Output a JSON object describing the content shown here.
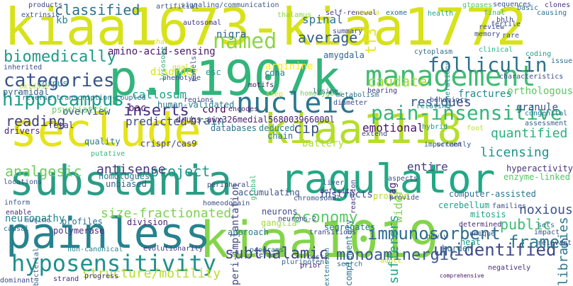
{
  "words": [
    {
      "text": "kiaa1673-kiaa1772",
      "color": "#d7e219"
    },
    {
      "text": "p.r1907k",
      "color": "#31b57b"
    },
    {
      "text": "seclude",
      "color": "#e4e419"
    },
    {
      "text": "substania",
      "color": "#2a9d85"
    },
    {
      "text": "ragulator",
      "color": "#22a884"
    },
    {
      "text": "kiaa1019",
      "color": "#84d44b"
    },
    {
      "text": "painless",
      "color": "#26828e"
    },
    {
      "text": "kiaa1118",
      "color": "#b5de2b"
    },
    {
      "text": "nucleic",
      "color": "#2a768e"
    },
    {
      "text": "management",
      "color": "#3fbc73"
    },
    {
      "text": "hyposensitivity",
      "color": "#21908d"
    },
    {
      "text": "pain-insensitive",
      "color": "#35b779"
    },
    {
      "text": "folliculin",
      "color": "#2c728e"
    },
    {
      "text": "categories",
      "color": "#3b528b"
    },
    {
      "text": "hippocampus",
      "color": "#1f9e89"
    },
    {
      "text": "named",
      "color": "#8ed645"
    },
    {
      "text": "immunosorbent",
      "color": "#2e6e8e"
    },
    {
      "text": "economy",
      "color": "#5ec962"
    },
    {
      "text": "unidentified",
      "color": "#3e4989"
    },
    {
      "text": "frames",
      "color": "#27808e"
    },
    {
      "text": "subthalamic",
      "color": "#414487"
    },
    {
      "text": "monoaminergic",
      "color": "#38598c"
    },
    {
      "text": "biomedically",
      "color": "#1e9b8a"
    },
    {
      "text": "inserts",
      "color": "#46327e"
    },
    {
      "text": "classified",
      "color": "#2d708e"
    },
    {
      "text": "average",
      "color": "#365c8d"
    },
    {
      "text": "caudate",
      "color": "#a5db36"
    },
    {
      "text": "size-fractionated",
      "color": "#7ad151"
    },
    {
      "text": "structure/motility",
      "color": "#b8de29"
    },
    {
      "text": "libraries",
      "color": "#2b758e"
    },
    {
      "text": "project",
      "color": "#1f978b"
    },
    {
      "text": "analgesic",
      "color": "#6ccd5a"
    },
    {
      "text": "antisense",
      "color": "#443a83"
    },
    {
      "text": "reading",
      "color": "#433e85"
    },
    {
      "text": "public",
      "color": "#3dbc74"
    },
    {
      "text": "noxious",
      "color": "#3b528b"
    },
    {
      "text": "licensing",
      "color": "#21918c"
    },
    {
      "text": "quantified",
      "color": "#2ab07f"
    },
    {
      "text": "sufferers",
      "color": "#1fa187"
    },
    {
      "text": "residues",
      "color": "#39568c"
    },
    {
      "text": "emotional",
      "color": "#471063"
    },
    {
      "text": "cip",
      "color": "#3b528b"
    },
    {
      "text": "brain",
      "color": "#2a788e"
    },
    {
      "text": "cord",
      "color": "#440154"
    },
    {
      "text": "predicted",
      "color": "#3e4a89"
    },
    {
      "text": "overview",
      "color": "#3a538b"
    },
    {
      "text": "callosum",
      "color": "#20a386"
    },
    {
      "text": "neuropathy",
      "color": "#23898e"
    },
    {
      "text": "spinal",
      "color": "#2c718e"
    },
    {
      "text": "tf3",
      "color": "#e5e419"
    },
    {
      "text": "kb",
      "color": "#23888e"
    },
    {
      "text": "amino-acid-sensing",
      "color": "#481769"
    },
    {
      "text": "battery",
      "color": "#addc30"
    },
    {
      "text": "entire",
      "color": "#443983"
    },
    {
      "text": "instructs",
      "color": "#3b518b"
    },
    {
      "text": "fractures",
      "color": "#24868e"
    },
    {
      "text": "granule",
      "color": "#3c4f8a"
    },
    {
      "text": "orthologous",
      "color": "#5cc863"
    },
    {
      "text": "immunosorbent-x",
      "color": "#2e6e8e"
    },
    {
      "text": "human-validated",
      "color": "#287d8e"
    },
    {
      "text": "bac",
      "color": "#471365"
    },
    {
      "text": "deduced",
      "color": "#26828e"
    },
    {
      "text": "chain",
      "color": "#2c728e"
    },
    {
      "text": "drugs.awx326medial568003966000l",
      "color": "#482173"
    },
    {
      "text": "wider",
      "color": "#7fd34e"
    },
    {
      "text": "rag",
      "color": "#482475"
    },
    {
      "text": "hyperactivity",
      "color": "#46337f"
    },
    {
      "text": "computer-assisted",
      "color": "#2d708e"
    },
    {
      "text": "enzyme-linked",
      "color": "#54c568"
    },
    {
      "text": "arginine",
      "color": "#fde725"
    },
    {
      "text": "nigra",
      "color": "#31668e"
    },
    {
      "text": "amygdala",
      "color": "#31668e"
    },
    {
      "text": "cdna",
      "color": "#287c8e"
    },
    {
      "text": "esc",
      "color": "#1f9e89"
    },
    {
      "text": "corpus",
      "color": "#277f8e"
    },
    {
      "text": "disorder",
      "color": "#d2e21b"
    },
    {
      "text": "psychiatric",
      "color": "#65cb5e"
    },
    {
      "text": "pyramidal",
      "color": "#33638d"
    },
    {
      "text": "fetal",
      "color": "#443983"
    },
    {
      "text": "drivers",
      "color": "#482677"
    },
    {
      "text": "quality",
      "color": "#2a788e"
    },
    {
      "text": "crispr/cas9",
      "color": "#414487"
    },
    {
      "text": "databases",
      "color": "#2d708e"
    },
    {
      "text": "homologues",
      "color": "#29798e"
    },
    {
      "text": "unbiased",
      "color": "#355f8d"
    },
    {
      "text": "accumulating",
      "color": "#3b528b"
    },
    {
      "text": "neurons",
      "color": "#3e4989"
    },
    {
      "text": "cerebellum",
      "color": "#1fa088"
    },
    {
      "text": "polymerase",
      "color": "#472d7b"
    },
    {
      "text": "profiles",
      "color": "#2c718e"
    },
    {
      "text": "division",
      "color": "#481f70"
    },
    {
      "text": "approach",
      "color": "#287d8e"
    },
    {
      "text": "segregates",
      "color": "#2a778e"
    },
    {
      "text": "mitosis",
      "color": "#1fa187"
    },
    {
      "text": "burden",
      "color": "#2c718e"
    },
    {
      "text": "heat",
      "color": "#1f9a8a"
    },
    {
      "text": "non-canonical",
      "color": "#25848e"
    },
    {
      "text": "comprehensive",
      "color": "#471164"
    },
    {
      "text": "strand",
      "color": "#472c7a"
    },
    {
      "text": "murine",
      "color": "#34618d"
    },
    {
      "text": "causal",
      "color": "#2e6f8e"
    },
    {
      "text": "enable",
      "color": "#482979"
    },
    {
      "text": "inform",
      "color": "#39568c"
    },
    {
      "text": "ganglia",
      "color": "#a2da37"
    },
    {
      "text": "liver",
      "color": "#3f4889"
    },
    {
      "text": "deficits",
      "color": "#46337f"
    },
    {
      "text": "neurons-2",
      "color": "#3e4989"
    },
    {
      "text": "proband",
      "color": "#b4de2c"
    },
    {
      "text": "screen",
      "color": "#3e4a89"
    },
    {
      "text": "families",
      "color": "#3b528b"
    },
    {
      "text": "sets",
      "color": "#2a768e"
    },
    {
      "text": "impact",
      "color": "#3d4e8a"
    },
    {
      "text": "products",
      "color": "#404588"
    },
    {
      "text": "artificial",
      "color": "#3a548c"
    },
    {
      "text": "signaling/communication",
      "color": "#38588c"
    },
    {
      "text": "sequences",
      "color": "#39558c"
    },
    {
      "text": "gtpases",
      "color": "#56c667"
    },
    {
      "text": "clones",
      "color": "#46327e"
    },
    {
      "text": "basic",
      "color": "#2e6d8e"
    },
    {
      "text": "extrinsic",
      "color": "#3b518b"
    },
    {
      "text": "thalamus",
      "color": "#8bd646"
    },
    {
      "text": "self-renewal",
      "color": "#453781"
    },
    {
      "text": "exome",
      "color": "#2d718e"
    },
    {
      "text": "health",
      "color": "#20a486"
    },
    {
      "text": "final",
      "color": "#31b57b"
    },
    {
      "text": "mapping",
      "color": "#dde318"
    },
    {
      "text": "bhlh",
      "color": "#3f4788"
    },
    {
      "text": "autosomal",
      "color": "#463480"
    },
    {
      "text": "lysosome",
      "color": "#2db27d"
    },
    {
      "text": "panels",
      "color": "#39568c"
    },
    {
      "text": "generations",
      "color": "#25858e"
    },
    {
      "text": "rare",
      "color": "#3c4f8a"
    },
    {
      "text": "clinical",
      "color": "#2ab07f"
    },
    {
      "text": "coding",
      "color": "#1f9e89"
    },
    {
      "text": "issue",
      "color": "#2e6d8e"
    },
    {
      "text": "cytoplasm",
      "color": "#2f6b8e"
    },
    {
      "text": "inherited",
      "color": "#3e4a89"
    },
    {
      "text": "goals",
      "color": "#bade28"
    },
    {
      "text": "phenotype",
      "color": "#3c508b"
    },
    {
      "text": "motifs",
      "color": "#481b6d"
    },
    {
      "text": "regions",
      "color": "#3f4788"
    },
    {
      "text": "encodes",
      "color": "#482374"
    },
    {
      "text": "homozygous",
      "color": "#6ece58"
    },
    {
      "text": "metabolism",
      "color": "#2c728e"
    },
    {
      "text": "bearing",
      "color": "#453882"
    },
    {
      "text": "diameter",
      "color": "#3e4c8a"
    },
    {
      "text": "relating",
      "color": "#1f998a"
    },
    {
      "text": "behaviors",
      "color": "#3b528b"
    },
    {
      "text": "characteristics",
      "color": "#3d4e8a"
    },
    {
      "text": "foot",
      "color": "#c0df25"
    },
    {
      "text": "hybrid",
      "color": "#1f958b"
    },
    {
      "text": "assessment",
      "color": "#34608d"
    },
    {
      "text": "congenital",
      "color": "#2c728e"
    },
    {
      "text": "reverse-transcription-coupled",
      "color": "#2f6c8e"
    },
    {
      "text": "step",
      "color": "#dae319"
    },
    {
      "text": "lysine",
      "color": "#2f6c8e"
    },
    {
      "text": "peripheral",
      "color": "#3e4c8a"
    },
    {
      "text": "global",
      "color": "#3aba76"
    },
    {
      "text": "chromosomal",
      "color": "#3a538b"
    },
    {
      "text": "peri-implantation",
      "color": "#3f4889"
    },
    {
      "text": "homeodomain",
      "color": "#3c4f8a"
    },
    {
      "text": "reaction",
      "color": "#453581"
    },
    {
      "text": "provide",
      "color": "#3b528b"
    },
    {
      "text": "transitions",
      "color": "#3e4989"
    },
    {
      "text": "evolutionarily",
      "color": "#443983"
    },
    {
      "text": "programs",
      "color": "#2c718e"
    },
    {
      "text": "terms",
      "color": "#3e4a89"
    },
    {
      "text": "pluripotent",
      "color": "#33638d"
    },
    {
      "text": "complementary",
      "color": "#2a778e"
    },
    {
      "text": "newly",
      "color": "#3c4f8a"
    },
    {
      "text": "determined",
      "color": "#482878"
    },
    {
      "text": "unique",
      "color": "#38588c"
    },
    {
      "text": "negatively",
      "color": "#472f7d"
    },
    {
      "text": "relevant",
      "color": "#3e4989"
    },
    {
      "text": "aspects",
      "color": "#3c4f8a"
    },
    {
      "text": "importantly",
      "color": "#38588c"
    },
    {
      "text": "dominant",
      "color": "#3e4989"
    },
    {
      "text": "progress",
      "color": "#472c7a"
    },
    {
      "text": "tests",
      "color": "#3b528b"
    },
    {
      "text": "adult",
      "color": "#c5e021"
    },
    {
      "text": "prior",
      "color": "#482374"
    },
    {
      "text": "search",
      "color": "#2b758e"
    },
    {
      "text": "putative",
      "color": "#35b779"
    },
    {
      "text": "bacterial",
      "color": "#31668e"
    },
    {
      "text": "locations",
      "color": "#3b528b"
    },
    {
      "text": "extend",
      "color": "#3f4788"
    },
    {
      "text": "extension",
      "color": "#2a778e"
    },
    {
      "text": "summary",
      "color": "#3e4c8a"
    },
    {
      "text": "change",
      "color": "#dae319"
    },
    {
      "text": "causing",
      "color": "#2c718e"
    },
    {
      "text": "review",
      "color": "#3b528b"
    },
    {
      "text": "memory",
      "color": "#3e4989"
    },
    {
      "text": "fertile",
      "color": "#3b528b"
    },
    {
      "text": "oxidase",
      "color": "#c2df23"
    }
  ]
}
